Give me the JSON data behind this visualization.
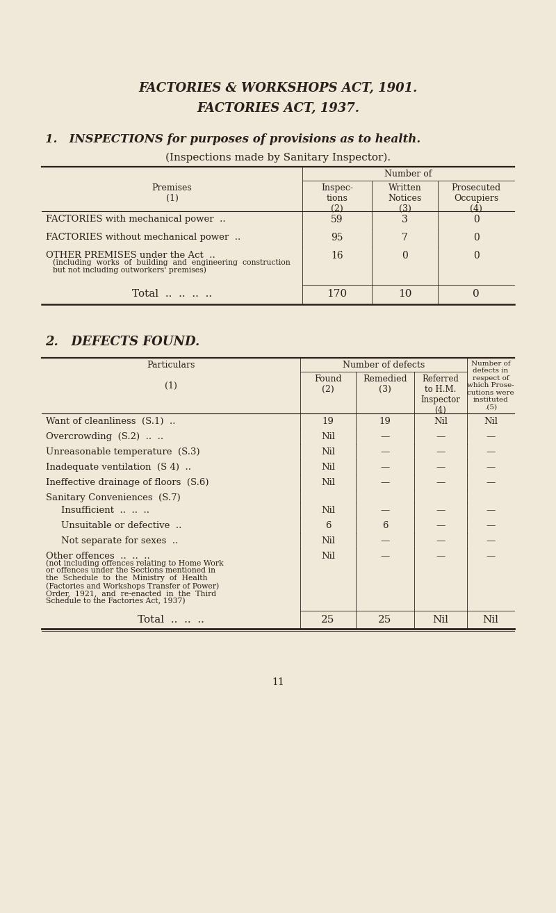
{
  "bg_color": "#f0e8d8",
  "text_color": "#2a1f1a",
  "title1": "FACTORIES & WORKSHOPS ACT, 1901.",
  "title2": "FACTORIES ACT, 1937.",
  "section1_heading": "1.   INSPECTIONS for purposes of provisions as to health.",
  "section1_subheading": "(Inspections made by Sanitary Inspector).",
  "table1_group_header": "Number of",
  "table1_rows": [
    [
      "FACTORIES with mechanical power  ..",
      "59",
      "3",
      "0"
    ],
    [
      "FACTORIES without mechanical power  ..",
      "95",
      "7",
      "0"
    ],
    [
      "OTHER PREMISES under the Act  ..",
      "16",
      "0",
      "0",
      "(including  works  of  building  and  engineering  construction",
      "but not including outworkers' premises)"
    ]
  ],
  "table1_total": [
    "Total  ..  ..  ..  ..",
    "170",
    "10",
    "0"
  ],
  "section2_heading": "2.   DEFECTS FOUND.",
  "table2_rows": [
    [
      "Want of cleanliness  (S.1)  ..",
      "19",
      "19",
      "Nil",
      "Nil"
    ],
    [
      "Overcrowding  (S.2)  ..  ..",
      "Nil",
      "—",
      "—",
      "—"
    ],
    [
      "Unreasonable temperature  (S.3)",
      "Nil",
      "—",
      "—",
      "—"
    ],
    [
      "Inadequate ventilation  (S 4)  ..",
      "Nil",
      "—",
      "—",
      "—"
    ],
    [
      "Ineffective drainage of floors  (S.6)",
      "Nil",
      "—",
      "—",
      "—"
    ],
    [
      "Sanitary Conveniences  (S.7)",
      "",
      "",
      "",
      ""
    ],
    [
      "    Insufficient  ..  ..  ..",
      "Nil",
      "—",
      "—",
      "—"
    ],
    [
      "    Unsuitable or defective  ..",
      "6",
      "6",
      "—",
      "—"
    ],
    [
      "    Not separate for sexes  ..",
      "Nil",
      "—",
      "—",
      "—"
    ],
    [
      "Other offences  ..  ..  ..",
      "Nil",
      "—",
      "—",
      "—",
      "(not including offences relating to Home Work",
      "or offences under the Sections mentioned in",
      "the  Schedule  to  the  Ministry  of  Health",
      "(Factories and Workshops Transfer of Power)",
      "Order,  1921,  and  re-enacted  in  the  Third",
      "Schedule to the Factories Act, 1937)"
    ]
  ],
  "table2_total": [
    "Total  ..  ..  ..",
    "25",
    "25",
    "Nil",
    "Nil"
  ],
  "page_number": "11"
}
